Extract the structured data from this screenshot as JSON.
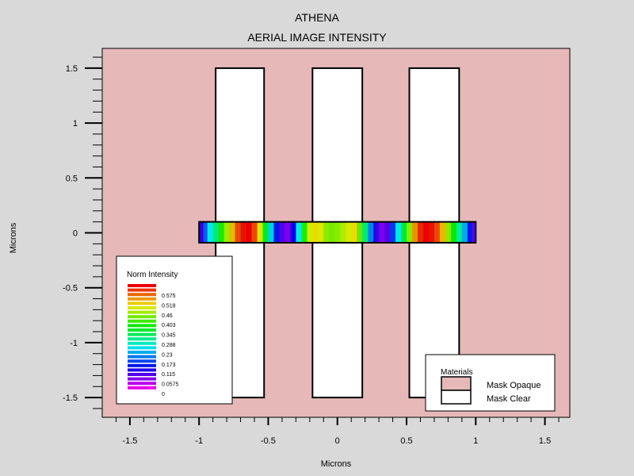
{
  "chart_data": {
    "type": "heatmap",
    "title": "ATHENA",
    "subtitle": "AERIAL IMAGE INTENSITY",
    "xlabel": "Microns",
    "ylabel": "Microns",
    "xlim": [
      -1.7,
      1.68
    ],
    "ylim": [
      -1.68,
      1.68
    ],
    "x_ticks": [
      {
        "value": -1.5,
        "label": "-1.5"
      },
      {
        "value": -1,
        "label": "-1"
      },
      {
        "value": -0.5,
        "label": "-0.5"
      },
      {
        "value": 0,
        "label": "0"
      },
      {
        "value": 0.5,
        "label": "0.5"
      },
      {
        "value": 1,
        "label": "1"
      },
      {
        "value": 1.5,
        "label": "1.5"
      }
    ],
    "y_ticks": [
      {
        "value": 1.5,
        "label": "1.5"
      },
      {
        "value": 1,
        "label": "1"
      },
      {
        "value": 0.5,
        "label": "0.5"
      },
      {
        "value": 0,
        "label": "0"
      },
      {
        "value": -0.5,
        "label": "-0.5"
      },
      {
        "value": -1,
        "label": "-1"
      },
      {
        "value": -1.5,
        "label": "-1.5"
      }
    ],
    "background_color": "#e6b8b8",
    "mask_clear_regions": [
      {
        "x0": -0.88,
        "x1": -0.53,
        "y0": -1.5,
        "y1": 1.5
      },
      {
        "x0": -0.18,
        "x1": 0.18,
        "y0": -1.5,
        "y1": 1.5
      },
      {
        "x0": 0.52,
        "x1": 0.88,
        "y0": -1.5,
        "y1": 1.5
      }
    ],
    "intensity_strip": {
      "x0": -1.0,
      "x1": 1.0,
      "y0": -0.09,
      "y1": 0.1,
      "x": [
        -1.0,
        -0.97,
        -0.94,
        -0.9,
        -0.86,
        -0.82,
        -0.78,
        -0.74,
        -0.7,
        -0.66,
        -0.62,
        -0.58,
        -0.54,
        -0.5,
        -0.46,
        -0.42,
        -0.38,
        -0.34,
        -0.3,
        -0.26,
        -0.22,
        -0.18,
        -0.14,
        -0.1,
        -0.06,
        -0.02,
        0.02,
        0.06,
        0.1,
        0.14,
        0.18,
        0.22,
        0.26,
        0.3,
        0.34,
        0.38,
        0.42,
        0.46,
        0.5,
        0.54,
        0.58,
        0.62,
        0.66,
        0.7,
        0.74,
        0.78,
        0.82,
        0.86,
        0.9,
        0.94,
        0.97
      ],
      "intensity": [
        0.1,
        0.18,
        0.26,
        0.32,
        0.4,
        0.47,
        0.54,
        0.6,
        0.63,
        0.64,
        0.6,
        0.5,
        0.36,
        0.24,
        0.14,
        0.08,
        0.06,
        0.12,
        0.26,
        0.4,
        0.5,
        0.52,
        0.5,
        0.46,
        0.45,
        0.46,
        0.48,
        0.5,
        0.52,
        0.44,
        0.32,
        0.2,
        0.1,
        0.06,
        0.08,
        0.16,
        0.26,
        0.36,
        0.46,
        0.56,
        0.62,
        0.64,
        0.63,
        0.6,
        0.54,
        0.46,
        0.38,
        0.3,
        0.22,
        0.14,
        0.08
      ]
    },
    "colorbar": {
      "title": "Norm Intensity",
      "labels": [
        "0.575",
        "0.518",
        "0.46",
        "0.403",
        "0.345",
        "0.288",
        "0.23",
        "0.173",
        "0.115",
        "0.0575",
        "0"
      ],
      "min": 0,
      "max": 0.64,
      "placement": "bottom-left"
    },
    "materials_legend": {
      "title": "Materials",
      "items": [
        {
          "label": "Mask Opaque",
          "color": "#e6b8b8"
        },
        {
          "label": "Mask Clear",
          "color": "#ffffff"
        }
      ],
      "placement": "bottom-right"
    }
  }
}
